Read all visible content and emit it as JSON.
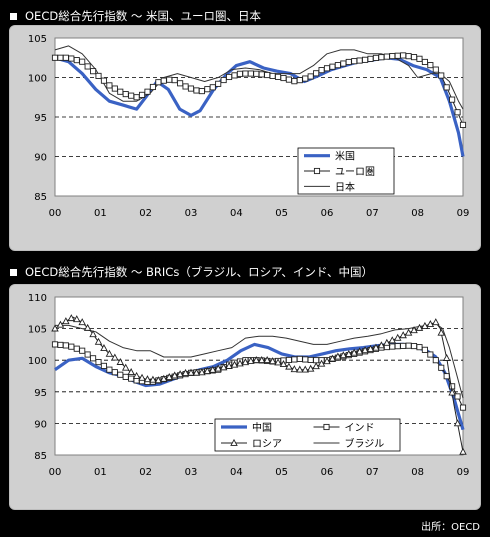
{
  "chart_data": [
    {
      "type": "line",
      "title": "OECD総合先行指数 ～ 米国、ユーロ圏、日本",
      "ylim": [
        85,
        105
      ],
      "yticks": [
        85,
        90,
        95,
        100,
        105
      ],
      "xlim": [
        2000,
        2009
      ],
      "xticks": [
        "00",
        "01",
        "02",
        "03",
        "04",
        "05",
        "06",
        "07",
        "08",
        "09"
      ],
      "grid": "dashed-at-90-95-100",
      "legend_position": "lower-right",
      "series": [
        {
          "name": "米国",
          "style": "thick-blue",
          "color": "#3a62c4",
          "x": [
            2000.0,
            2000.3,
            2000.6,
            2000.9,
            2001.2,
            2001.5,
            2001.8,
            2002.0,
            2002.25,
            2002.5,
            2002.75,
            2003.0,
            2003.2,
            2003.5,
            2003.8,
            2004.0,
            2004.3,
            2004.6,
            2004.9,
            2005.2,
            2005.5,
            2005.8,
            2006.1,
            2006.4,
            2006.7,
            2007.0,
            2007.3,
            2007.6,
            2007.9,
            2008.2,
            2008.5,
            2008.7,
            2008.9,
            2009.0
          ],
          "y": [
            102.5,
            102.0,
            100.5,
            98.5,
            97.0,
            96.5,
            96.0,
            97.5,
            99.5,
            98.5,
            96.0,
            95.2,
            95.8,
            98.5,
            100.5,
            101.5,
            102.0,
            101.2,
            100.8,
            100.5,
            99.5,
            100.2,
            101.0,
            101.5,
            102.0,
            102.2,
            102.5,
            102.3,
            101.5,
            101.0,
            100.0,
            97.0,
            93.0,
            90.0
          ]
        },
        {
          "name": "ユーロ圏",
          "style": "square-markers",
          "color": "#222222",
          "x": [
            2000.0,
            2000.3,
            2000.6,
            2000.9,
            2001.2,
            2001.5,
            2001.8,
            2002.0,
            2002.3,
            2002.6,
            2002.9,
            2003.2,
            2003.5,
            2003.8,
            2004.1,
            2004.4,
            2004.7,
            2005.0,
            2005.3,
            2005.6,
            2005.9,
            2006.2,
            2006.5,
            2006.8,
            2007.1,
            2007.4,
            2007.7,
            2008.0,
            2008.3,
            2008.5,
            2008.7,
            2008.85,
            2009.0
          ],
          "y": [
            102.5,
            102.5,
            102.0,
            100.5,
            99.0,
            98.0,
            97.5,
            98.0,
            99.5,
            99.8,
            98.8,
            98.2,
            98.8,
            100.0,
            100.5,
            100.5,
            100.3,
            100.0,
            99.5,
            100.0,
            101.0,
            101.5,
            102.0,
            102.2,
            102.5,
            102.7,
            102.8,
            102.5,
            101.5,
            100.5,
            98.0,
            96.0,
            94.0
          ]
        },
        {
          "name": "日本",
          "style": "thin-line",
          "color": "#333333",
          "x": [
            2000.0,
            2000.3,
            2000.6,
            2000.9,
            2001.2,
            2001.5,
            2001.8,
            2002.1,
            2002.4,
            2002.7,
            2003.0,
            2003.3,
            2003.6,
            2003.9,
            2004.2,
            2004.5,
            2004.8,
            2005.1,
            2005.4,
            2005.7,
            2006.0,
            2006.3,
            2006.6,
            2006.9,
            2007.2,
            2007.5,
            2007.8,
            2008.0,
            2008.3,
            2008.5,
            2008.7,
            2008.9,
            2009.0
          ],
          "y": [
            103.5,
            104.0,
            103.0,
            101.0,
            98.0,
            97.0,
            97.0,
            98.0,
            100.0,
            100.5,
            100.0,
            99.5,
            100.0,
            101.0,
            101.2,
            101.0,
            100.5,
            100.5,
            100.5,
            101.5,
            103.0,
            103.5,
            103.5,
            103.0,
            103.0,
            102.5,
            101.5,
            100.0,
            100.5,
            100.5,
            99.5,
            97.0,
            96.0
          ]
        }
      ]
    },
    {
      "type": "line",
      "title": "OECD総合先行指数 ～ BRICs（ブラジル、ロシア、インド、中国）",
      "ylim": [
        85,
        110
      ],
      "yticks": [
        85,
        90,
        95,
        100,
        105,
        110
      ],
      "xlim": [
        2000,
        2009
      ],
      "xticks": [
        "00",
        "01",
        "02",
        "03",
        "04",
        "05",
        "06",
        "07",
        "08",
        "09"
      ],
      "grid": "dashed-at-90-95-100-105",
      "legend_position": "lower-left",
      "series": [
        {
          "name": "中国",
          "style": "thick-blue",
          "color": "#3a62c4",
          "x": [
            2000.0,
            2000.3,
            2000.6,
            2000.9,
            2001.2,
            2001.5,
            2001.8,
            2002.0,
            2002.3,
            2002.6,
            2002.9,
            2003.2,
            2003.5,
            2003.8,
            2004.1,
            2004.4,
            2004.7,
            2005.0,
            2005.3,
            2005.6,
            2005.9,
            2006.2,
            2006.5,
            2006.8,
            2007.1,
            2007.4,
            2007.7,
            2008.0,
            2008.2,
            2008.4,
            2008.6,
            2008.8,
            2009.0
          ],
          "y": [
            98.5,
            100.0,
            100.3,
            99.0,
            98.0,
            97.5,
            96.5,
            96.0,
            96.2,
            97.0,
            97.8,
            98.5,
            99.0,
            100.0,
            101.5,
            102.5,
            102.0,
            101.0,
            100.5,
            100.5,
            101.0,
            101.5,
            101.8,
            102.0,
            102.3,
            102.5,
            102.5,
            102.0,
            101.5,
            100.5,
            98.0,
            94.0,
            89.0
          ]
        },
        {
          "name": "インド",
          "style": "square-markers",
          "color": "#222222",
          "x": [
            2000.0,
            2000.3,
            2000.6,
            2000.9,
            2001.2,
            2001.5,
            2001.8,
            2002.1,
            2002.4,
            2002.7,
            2003.0,
            2003.3,
            2003.6,
            2003.9,
            2004.2,
            2004.5,
            2004.8,
            2005.1,
            2005.4,
            2005.7,
            2006.0,
            2006.3,
            2006.6,
            2006.9,
            2007.2,
            2007.5,
            2007.8,
            2008.0,
            2008.2,
            2008.4,
            2008.6,
            2008.75,
            2008.9,
            2009.0
          ],
          "y": [
            102.5,
            102.3,
            101.5,
            100.0,
            98.5,
            97.5,
            96.8,
            96.5,
            97.0,
            97.5,
            98.0,
            98.2,
            98.5,
            99.5,
            100.0,
            100.0,
            99.8,
            100.0,
            100.2,
            100.0,
            100.0,
            100.5,
            101.0,
            101.5,
            102.0,
            102.2,
            102.3,
            102.2,
            101.5,
            100.0,
            98.0,
            96.0,
            94.0,
            92.5
          ]
        },
        {
          "name": "ロシア",
          "style": "triangle-markers",
          "color": "#222222",
          "x": [
            2000.0,
            2000.2,
            2000.4,
            2000.6,
            2000.8,
            2001.0,
            2001.2,
            2001.4,
            2001.6,
            2001.8,
            2002.0,
            2002.3,
            2002.6,
            2002.9,
            2003.2,
            2003.5,
            2003.8,
            2004.1,
            2004.4,
            2004.7,
            2005.0,
            2005.3,
            2005.6,
            2005.9,
            2006.2,
            2006.5,
            2006.8,
            2007.1,
            2007.4,
            2007.7,
            2008.0,
            2008.2,
            2008.4,
            2008.5,
            2008.65,
            2008.8,
            2009.0
          ],
          "y": [
            105.0,
            106.0,
            106.8,
            106.0,
            104.5,
            102.5,
            101.0,
            100.0,
            98.5,
            97.5,
            97.0,
            96.8,
            97.5,
            98.0,
            98.0,
            98.5,
            99.0,
            99.5,
            100.0,
            100.0,
            99.5,
            98.5,
            98.5,
            99.5,
            100.5,
            101.0,
            101.5,
            102.0,
            103.0,
            104.0,
            105.0,
            105.5,
            106.0,
            105.0,
            100.0,
            93.0,
            85.5
          ]
        },
        {
          "name": "ブラジル",
          "style": "thin-line",
          "color": "#333333",
          "x": [
            2000.0,
            2000.3,
            2000.6,
            2000.9,
            2001.2,
            2001.5,
            2001.8,
            2002.1,
            2002.4,
            2002.7,
            2003.0,
            2003.3,
            2003.6,
            2003.9,
            2004.2,
            2004.5,
            2004.8,
            2005.1,
            2005.4,
            2005.7,
            2006.0,
            2006.3,
            2006.6,
            2006.9,
            2007.2,
            2007.5,
            2007.8,
            2008.0,
            2008.2,
            2008.4,
            2008.55,
            2008.7,
            2008.85,
            2009.0
          ],
          "y": [
            105.5,
            105.5,
            105.0,
            104.5,
            103.0,
            102.0,
            101.5,
            101.5,
            100.5,
            100.5,
            100.5,
            101.0,
            101.5,
            102.0,
            103.5,
            103.8,
            103.8,
            103.5,
            103.0,
            102.5,
            102.5,
            103.0,
            103.5,
            103.8,
            104.2,
            104.8,
            105.0,
            105.3,
            105.5,
            105.8,
            105.0,
            102.0,
            98.0,
            94.0
          ]
        }
      ]
    }
  ],
  "source": "出所：OECD",
  "colors": {
    "background": "#000000",
    "panel": "#d0d0d0",
    "plot": "#ffffff",
    "accent": "#3a62c4"
  }
}
